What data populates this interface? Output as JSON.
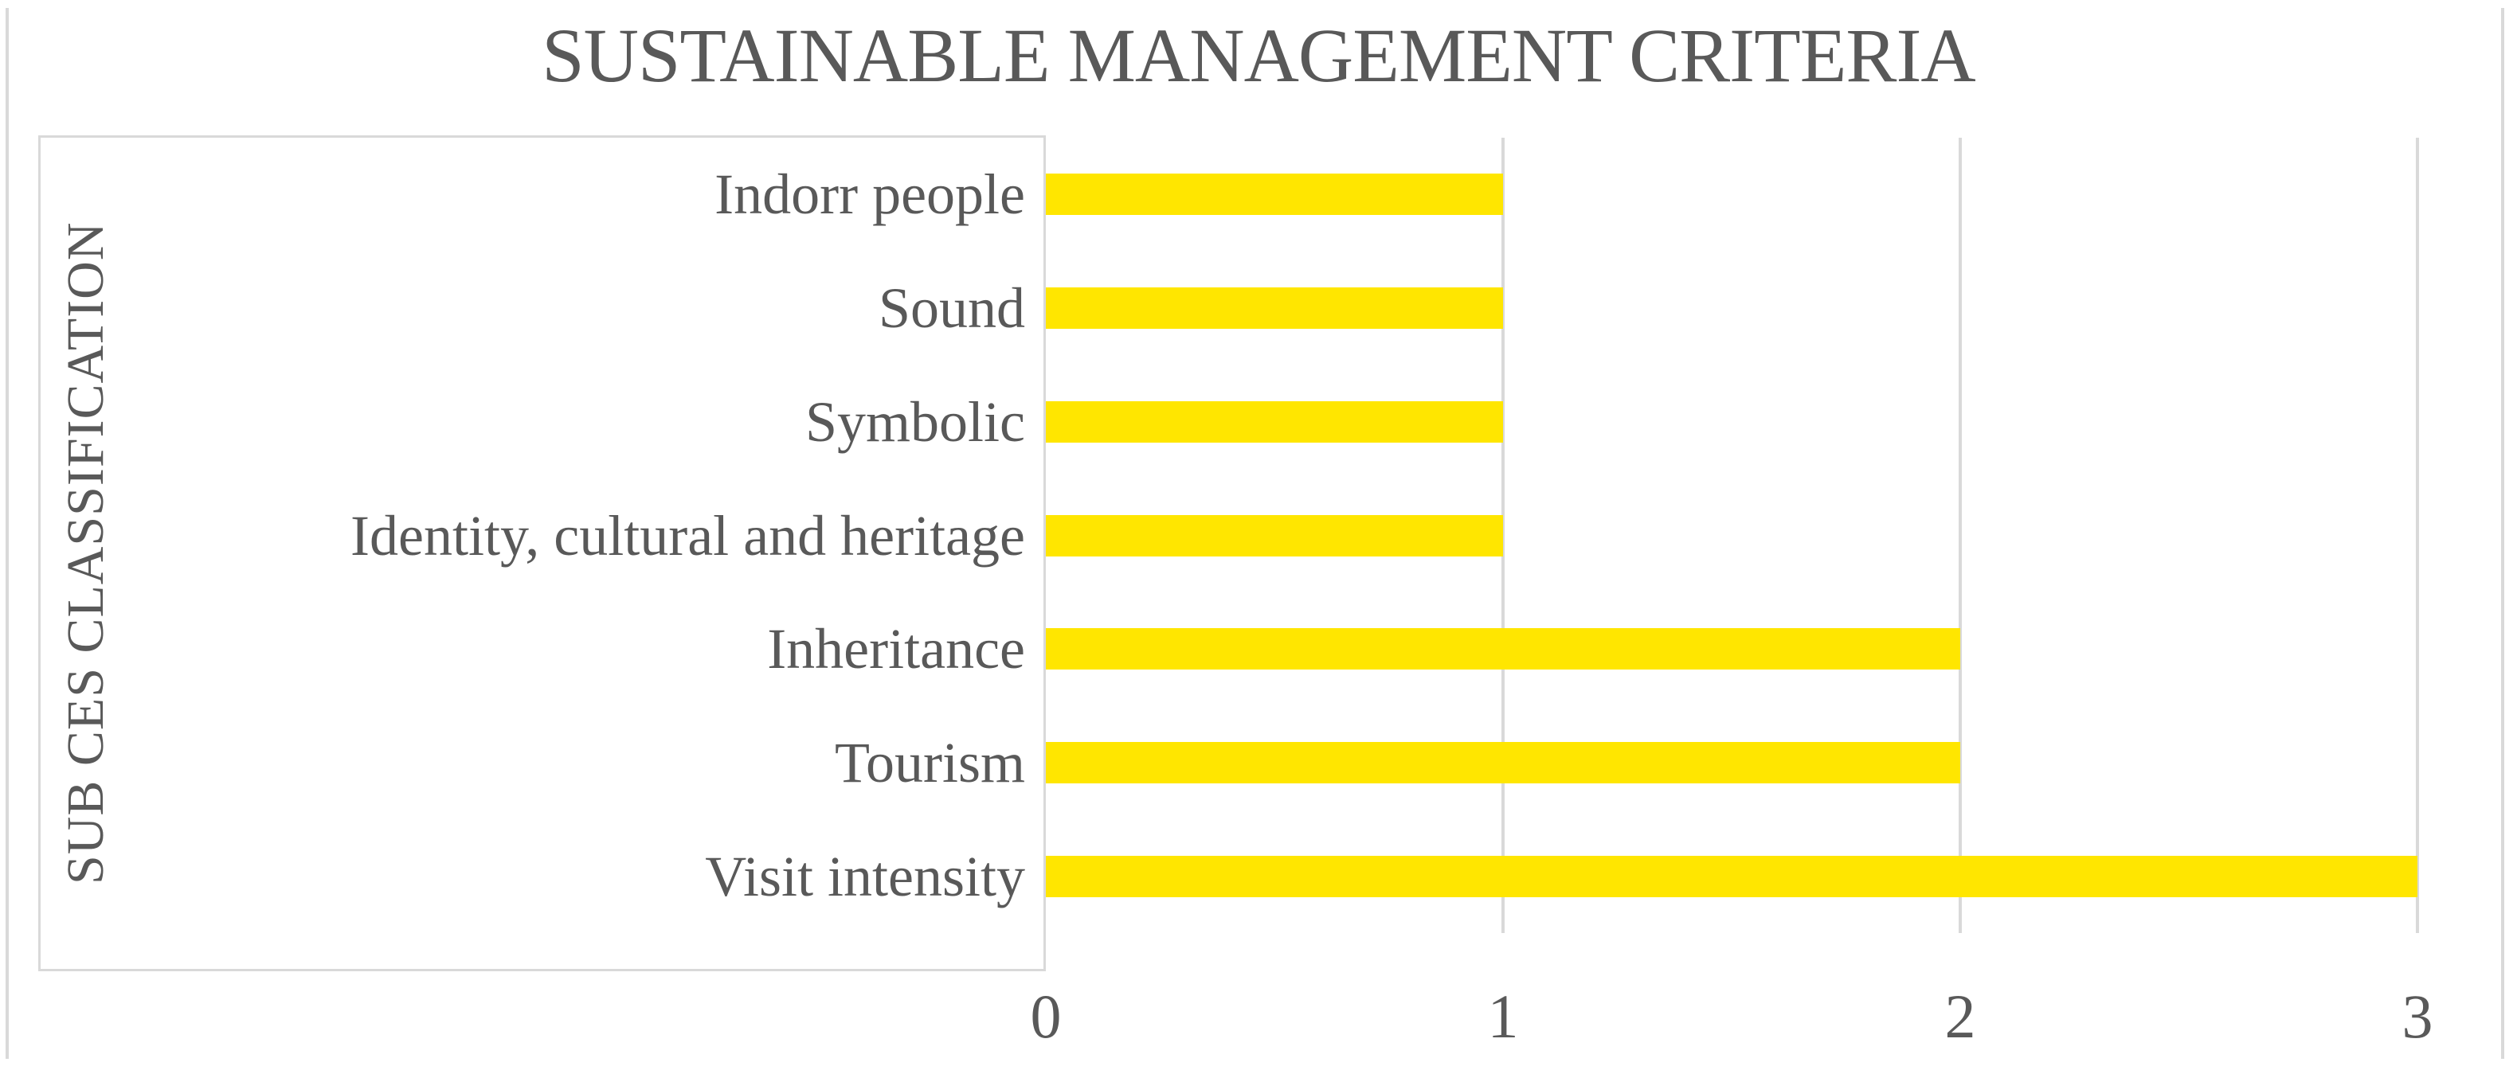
{
  "figure": {
    "kind": "embedded-excel-bar-chart",
    "background": "#FFFFFF",
    "frame_border_color": "#D9D9D9"
  },
  "chart_data": {
    "type": "bar",
    "orientation": "horizontal",
    "title": "SUSTAINABLE MANAGEMENT CRITERIA",
    "ylabel": "SUB CES CLASSIFICATION",
    "xlabel": "",
    "categories": [
      "Indorr people",
      "Sound",
      "Symbolic",
      "Identity, cultural and heritage",
      "Inheritance",
      "Tourism",
      "Visit intensity"
    ],
    "values": [
      1,
      1,
      1,
      1,
      2,
      2,
      3
    ],
    "xlim": [
      0,
      3
    ],
    "xticks": [
      "0",
      "1",
      "2",
      "3"
    ],
    "grid": true,
    "legend": false,
    "bar_color": "#FFE600",
    "grid_color": "#D9D9D9",
    "text_color": "#595959",
    "label_box_border_color": "#D9D9D9"
  }
}
